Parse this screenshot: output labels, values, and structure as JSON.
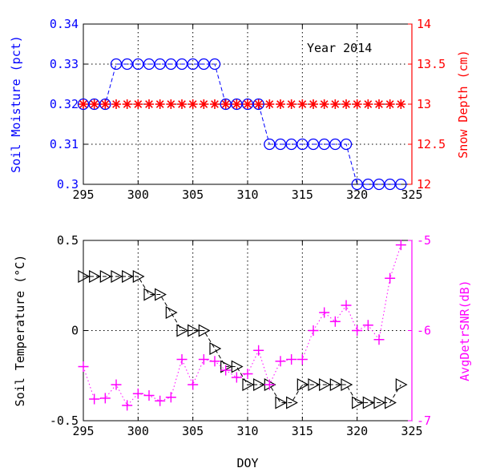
{
  "chart_data": [
    {
      "type": "line",
      "title": "",
      "annotation": "Year 2014",
      "xlabel": "",
      "xlim": [
        295,
        325
      ],
      "xticks": [
        295,
        300,
        305,
        310,
        315,
        320,
        325
      ],
      "grid": true,
      "y_left": {
        "label": "Soil Moisture (pct)",
        "lim": [
          0.3,
          0.34
        ],
        "ticks": [
          "0.3",
          "0.31",
          "0.32",
          "0.33",
          "0.34"
        ],
        "tick_values": [
          0.3,
          0.31,
          0.32,
          0.33,
          0.34
        ],
        "color": "#0000ff"
      },
      "y_right": {
        "label": "Snow Depth (cm)",
        "lim": [
          12,
          14
        ],
        "ticks": [
          "12",
          "12.5",
          "13",
          "13.5",
          "14"
        ],
        "tick_values": [
          12,
          12.5,
          13,
          13.5,
          14
        ],
        "color": "#ff0000"
      },
      "series": [
        {
          "axis": "left",
          "marker": "circle",
          "color": "#0000ff",
          "line": "dashed",
          "x": [
            295,
            296,
            297,
            298,
            299,
            300,
            301,
            302,
            303,
            304,
            305,
            306,
            307,
            308,
            309,
            310,
            311,
            312,
            313,
            314,
            315,
            316,
            317,
            318,
            319,
            320,
            321,
            322,
            323,
            324
          ],
          "y": [
            0.32,
            0.32,
            0.32,
            0.33,
            0.33,
            0.33,
            0.33,
            0.33,
            0.33,
            0.33,
            0.33,
            0.33,
            0.33,
            0.32,
            0.32,
            0.32,
            0.32,
            0.31,
            0.31,
            0.31,
            0.31,
            0.31,
            0.31,
            0.31,
            0.31,
            0.3,
            0.3,
            0.3,
            0.3,
            0.3
          ]
        },
        {
          "axis": "right",
          "marker": "asterisk",
          "color": "#ff0000",
          "line": "none",
          "x": [
            295,
            296,
            297,
            298,
            299,
            300,
            301,
            302,
            303,
            304,
            305,
            306,
            307,
            308,
            309,
            310,
            311,
            312,
            313,
            314,
            315,
            316,
            317,
            318,
            319,
            320,
            321,
            322,
            323,
            324
          ],
          "y": [
            13,
            13,
            13,
            13,
            13,
            13,
            13,
            13,
            13,
            13,
            13,
            13,
            13,
            13,
            13,
            13,
            13,
            13,
            13,
            13,
            13,
            13,
            13,
            13,
            13,
            13,
            13,
            13,
            13,
            13
          ]
        }
      ]
    },
    {
      "type": "line",
      "title": "",
      "xlabel": "DOY",
      "xlim": [
        295,
        325
      ],
      "xticks": [
        295,
        300,
        305,
        310,
        315,
        320,
        325
      ],
      "grid": true,
      "y_left": {
        "label": "Soil Temperature (°C)",
        "lim": [
          -0.5,
          0.5
        ],
        "ticks": [
          "0.5",
          "0",
          "-0.5"
        ],
        "tick_values": [
          0.5,
          0,
          -0.5
        ],
        "color": "#000000"
      },
      "y_right": {
        "label": "AvgDetrSNR(dB)",
        "lim": [
          -7,
          -5
        ],
        "ticks": [
          "-5",
          "-6",
          "-7"
        ],
        "tick_values": [
          -5,
          -6,
          -7
        ],
        "color": "#ff00ff"
      },
      "series": [
        {
          "axis": "left",
          "marker": "triangle-right",
          "color": "#000000",
          "line": "dashed",
          "x": [
            295,
            296,
            297,
            298,
            299,
            300,
            301,
            302,
            303,
            304,
            305,
            306,
            307,
            308,
            309,
            310,
            311,
            312,
            313,
            314,
            315,
            316,
            317,
            318,
            319,
            320,
            321,
            322,
            323,
            324
          ],
          "y": [
            0.3,
            0.3,
            0.3,
            0.3,
            0.3,
            0.3,
            0.2,
            0.2,
            0.1,
            0.0,
            0.0,
            0.0,
            -0.1,
            -0.2,
            -0.2,
            -0.3,
            -0.3,
            -0.3,
            -0.4,
            -0.4,
            -0.3,
            -0.3,
            -0.3,
            -0.3,
            -0.3,
            -0.4,
            -0.4,
            -0.4,
            -0.4,
            -0.3
          ]
        },
        {
          "axis": "right",
          "marker": "plus",
          "color": "#ff00ff",
          "line": "dotted",
          "x": [
            295,
            296,
            297,
            298,
            299,
            300,
            301,
            302,
            303,
            304,
            305,
            306,
            307,
            308,
            309,
            310,
            311,
            312,
            313,
            314,
            315,
            316,
            317,
            318,
            319,
            320,
            321,
            322,
            323,
            324
          ],
          "y": [
            -6.4,
            -6.76,
            -6.75,
            -6.6,
            -6.83,
            -6.7,
            -6.72,
            -6.78,
            -6.74,
            -6.32,
            -6.6,
            -6.32,
            -6.34,
            -6.44,
            -6.52,
            -6.48,
            -6.22,
            -6.6,
            -6.34,
            -6.32,
            -6.32,
            -6.0,
            -5.8,
            -5.9,
            -5.72,
            -6.0,
            -5.94,
            -6.1,
            -5.42,
            -5.05
          ]
        }
      ]
    }
  ]
}
